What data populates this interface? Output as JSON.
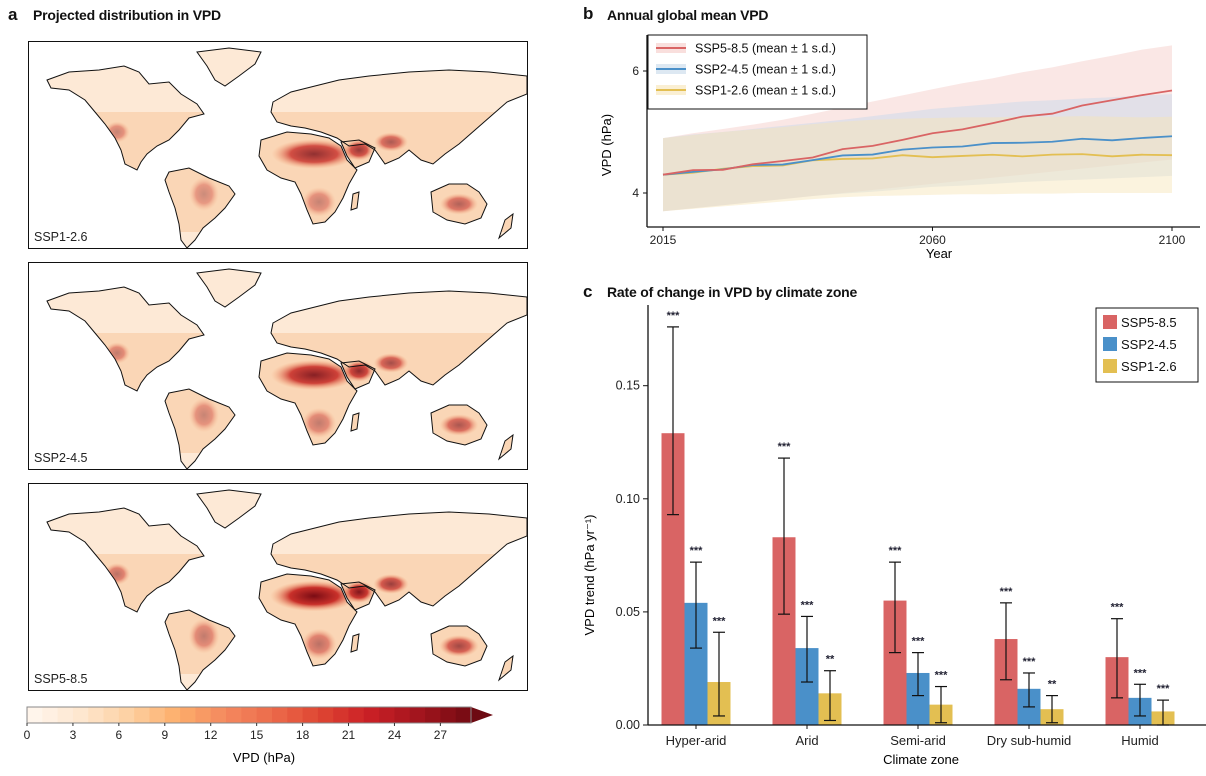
{
  "panel_a": {
    "letter": "a",
    "title": "Projected distribution in VPD",
    "maps": [
      {
        "label": "SSP1-2.6",
        "intensity": 0.82
      },
      {
        "label": "SSP2-4.5",
        "intensity": 0.9
      },
      {
        "label": "SSP5-8.5",
        "intensity": 1.0
      }
    ],
    "colorbar": {
      "label": "VPD (hPa)",
      "ticks": [
        "0",
        "3",
        "6",
        "9",
        "12",
        "15",
        "18",
        "21",
        "24",
        "27"
      ],
      "min": 0,
      "max": 29,
      "extend": "max",
      "colors": [
        "#fff5eb",
        "#fee6ce",
        "#fdd0a2",
        "#fdae6b",
        "#f4895e",
        "#ec6a4b",
        "#de4532",
        "#cb2026",
        "#a5151e",
        "#7a0c14"
      ]
    }
  },
  "panel_b": {
    "letter": "b",
    "title": "Annual global mean VPD"
  },
  "panel_c": {
    "letter": "c",
    "title": "Rate of change in VPD by climate zone"
  },
  "chart_data": [
    {
      "type": "line",
      "title": "Annual global mean VPD",
      "xlabel": "Year",
      "ylabel": "VPD (hPa)",
      "xlim": [
        2015,
        2100
      ],
      "ylim": [
        3.6,
        6.4
      ],
      "xticks": [
        2015,
        2060,
        2100
      ],
      "yticks": [
        4,
        6
      ],
      "legend": "top-left",
      "x": [
        2015,
        2020,
        2025,
        2030,
        2035,
        2040,
        2045,
        2050,
        2055,
        2060,
        2065,
        2070,
        2075,
        2080,
        2085,
        2090,
        2095,
        2100
      ],
      "series": [
        {
          "name": "SSP5-8.5 (mean ± 1 s.d.)",
          "color": "#d96464",
          "mean": [
            4.3,
            4.36,
            4.4,
            4.46,
            4.52,
            4.6,
            4.7,
            4.78,
            4.88,
            4.96,
            5.06,
            5.14,
            5.24,
            5.32,
            5.42,
            5.52,
            5.62,
            5.68
          ],
          "lower": [
            3.7,
            3.75,
            3.8,
            3.85,
            3.9,
            3.95,
            4.0,
            4.05,
            4.1,
            4.15,
            4.2,
            4.25,
            4.3,
            4.35,
            4.4,
            4.45,
            4.5,
            4.55
          ],
          "upper": [
            4.9,
            4.98,
            5.05,
            5.12,
            5.2,
            5.3,
            5.4,
            5.5,
            5.6,
            5.7,
            5.8,
            5.88,
            5.98,
            6.06,
            6.16,
            6.25,
            6.35,
            6.42
          ]
        },
        {
          "name": "SSP2-4.5 (mean ± 1 s.d.)",
          "color": "#4a90c9",
          "mean": [
            4.3,
            4.35,
            4.4,
            4.44,
            4.48,
            4.54,
            4.6,
            4.65,
            4.7,
            4.74,
            4.78,
            4.8,
            4.83,
            4.85,
            4.87,
            4.88,
            4.9,
            4.93
          ],
          "lower": [
            3.7,
            3.75,
            3.8,
            3.85,
            3.9,
            3.95,
            3.99,
            4.02,
            4.06,
            4.1,
            4.12,
            4.15,
            4.18,
            4.2,
            4.22,
            4.24,
            4.26,
            4.28
          ],
          "upper": [
            4.9,
            4.96,
            5.0,
            5.05,
            5.1,
            5.15,
            5.2,
            5.26,
            5.32,
            5.38,
            5.42,
            5.46,
            5.5,
            5.52,
            5.55,
            5.57,
            5.6,
            5.62
          ]
        },
        {
          "name": "SSP1-2.6 (mean ± 1 s.d.)",
          "color": "#e3bf52",
          "mean": [
            4.3,
            4.35,
            4.39,
            4.43,
            4.47,
            4.52,
            4.56,
            4.58,
            4.6,
            4.6,
            4.61,
            4.61,
            4.62,
            4.62,
            4.63,
            4.62,
            4.61,
            4.62
          ],
          "lower": [
            3.7,
            3.74,
            3.78,
            3.82,
            3.86,
            3.9,
            3.93,
            3.95,
            3.96,
            3.97,
            3.98,
            3.98,
            3.99,
            3.99,
            4.0,
            4.0,
            4.0,
            4.0
          ],
          "upper": [
            4.9,
            4.95,
            5.0,
            5.04,
            5.08,
            5.13,
            5.17,
            5.2,
            5.22,
            5.23,
            5.24,
            5.24,
            5.25,
            5.25,
            5.26,
            5.25,
            5.24,
            5.25
          ]
        }
      ]
    },
    {
      "type": "bar",
      "title": "Rate of change in VPD by climate zone",
      "xlabel": "Climate zone",
      "ylabel": "VPD trend (hPa yr⁻¹)",
      "ylim": [
        0,
        0.18
      ],
      "yticks": [
        "0.00",
        "0.05",
        "0.10",
        "0.15"
      ],
      "ytick_values": [
        0,
        0.05,
        0.1,
        0.15
      ],
      "legend": "top-right",
      "categories": [
        "Hyper-arid",
        "Arid",
        "Semi-arid",
        "Dry sub-humid",
        "Humid"
      ],
      "series": [
        {
          "name": "SSP5-8.5",
          "color": "#d96464",
          "values": [
            0.129,
            0.083,
            0.055,
            0.038,
            0.03
          ],
          "err_low": [
            0.093,
            0.049,
            0.032,
            0.02,
            0.012
          ],
          "err_high": [
            0.176,
            0.118,
            0.072,
            0.054,
            0.047
          ],
          "sig": [
            "***",
            "***",
            "***",
            "***",
            "***"
          ]
        },
        {
          "name": "SSP2-4.5",
          "color": "#4a90c9",
          "values": [
            0.054,
            0.034,
            0.023,
            0.016,
            0.012
          ],
          "err_low": [
            0.034,
            0.019,
            0.013,
            0.008,
            0.004
          ],
          "err_high": [
            0.072,
            0.048,
            0.032,
            0.023,
            0.018
          ],
          "sig": [
            "***",
            "***",
            "***",
            "***",
            "***"
          ]
        },
        {
          "name": "SSP1-2.6",
          "color": "#e3bf52",
          "values": [
            0.019,
            0.014,
            0.009,
            0.007,
            0.006
          ],
          "err_low": [
            0.004,
            0.002,
            0.001,
            0.001,
            0.0
          ],
          "err_high": [
            0.041,
            0.024,
            0.017,
            0.013,
            0.011
          ],
          "sig": [
            "***",
            "**",
            "***",
            "**",
            "***"
          ]
        }
      ]
    }
  ]
}
